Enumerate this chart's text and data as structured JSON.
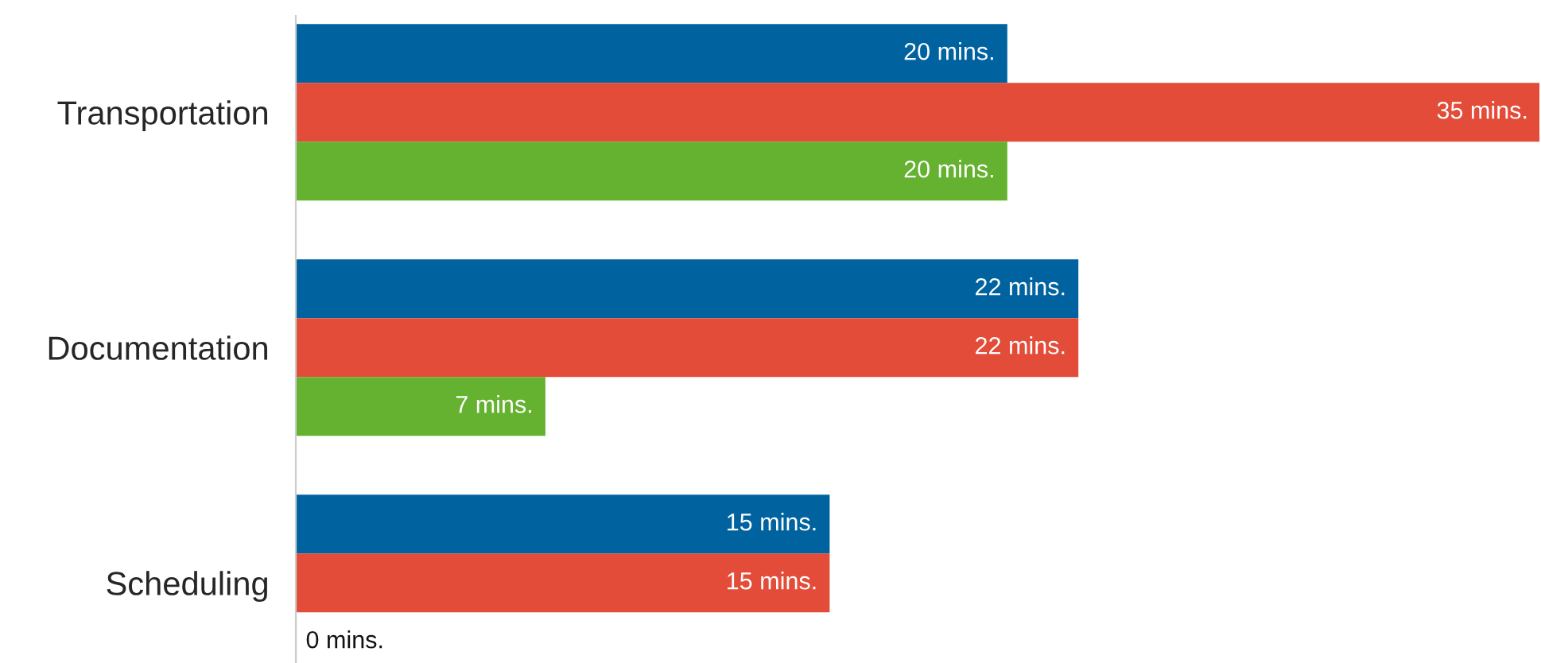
{
  "chart_data": {
    "type": "bar",
    "orientation": "horizontal",
    "categories": [
      "Transportation",
      "Documentation",
      "Scheduling"
    ],
    "series": [
      {
        "color": "#0063a0",
        "values": [
          20,
          22,
          15
        ],
        "value_labels": [
          "20 mins.",
          "22 mins.",
          "15 mins."
        ]
      },
      {
        "color": "#e34c38",
        "values": [
          35,
          22,
          15
        ],
        "value_labels": [
          "35 mins.",
          "22 mins.",
          "15 mins."
        ]
      },
      {
        "color": "#64b22f",
        "values": [
          20,
          7,
          0
        ],
        "value_labels": [
          "20 mins.",
          "7 mins.",
          "0 mins."
        ]
      }
    ],
    "grid": false,
    "legend": false,
    "tick_labels": "y"
  }
}
